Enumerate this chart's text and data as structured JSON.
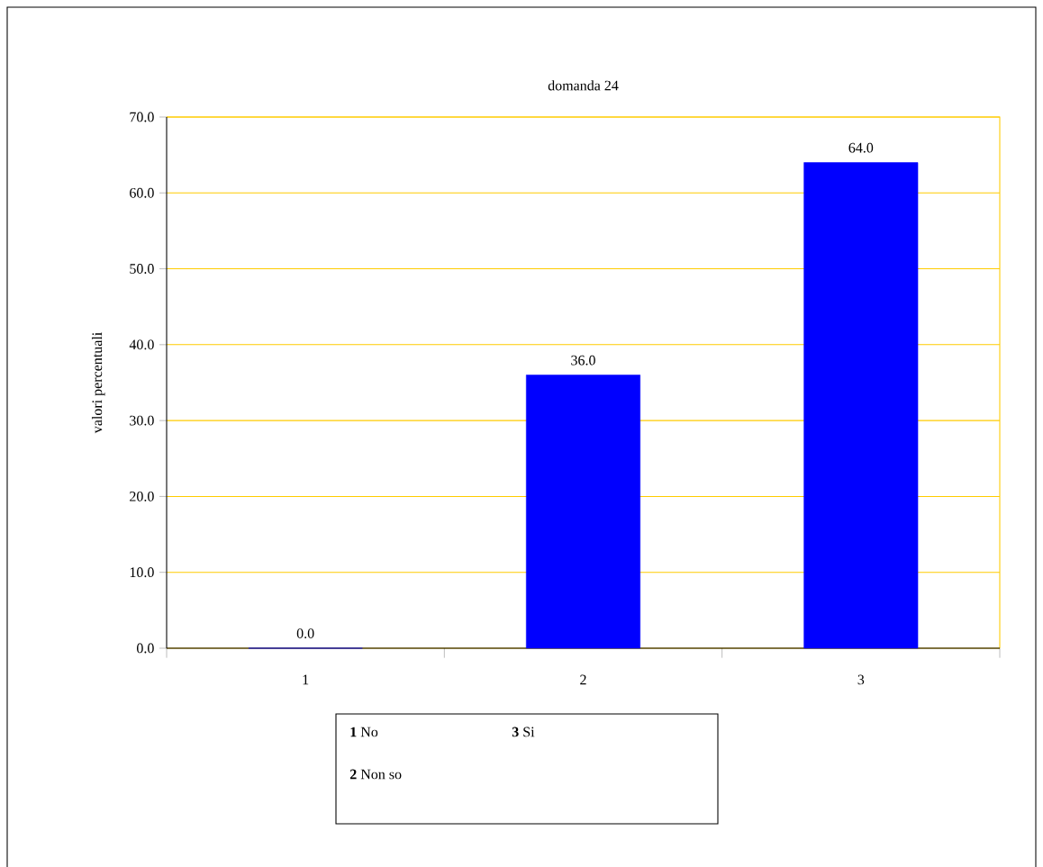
{
  "chart_data": {
    "type": "bar",
    "title": "domanda 24",
    "ylabel": "valori percentuali",
    "categories": [
      "1",
      "2",
      "3"
    ],
    "values": [
      0,
      36,
      64
    ],
    "color": "#0000ff",
    "value_labels": [
      "0.0",
      "36.0",
      "64.0"
    ],
    "ylim": [
      0,
      70
    ],
    "yticks": [
      {
        "value": 0,
        "label": "0.0"
      },
      {
        "value": 10,
        "label": "10.0"
      },
      {
        "value": 20,
        "label": "20.0"
      },
      {
        "value": 30,
        "label": "30.0"
      },
      {
        "value": 40,
        "label": "40.0"
      },
      {
        "value": 50,
        "label": "50.0"
      },
      {
        "value": 60,
        "label": "60.0"
      },
      {
        "value": 70,
        "label": "70.0"
      }
    ],
    "grid": "y",
    "annotations": [
      "**1** No",
      "**3** Si",
      "**2** Non so"
    ]
  }
}
